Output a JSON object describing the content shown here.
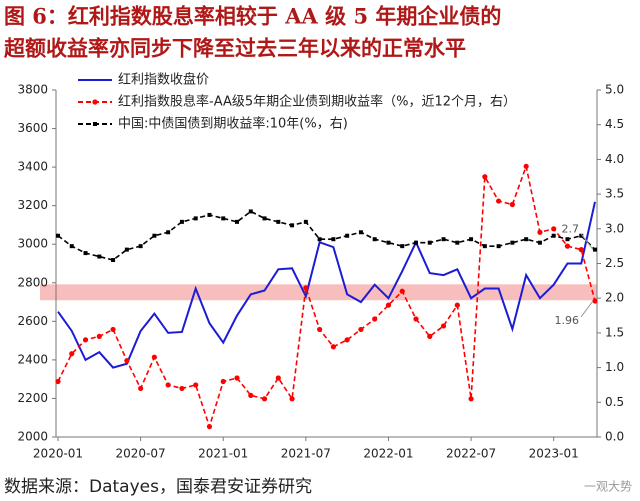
{
  "chart_data": {
    "type": "line",
    "title": [
      "图 6：红利指数股息率相较于 AA 级 5 年期企业债的",
      "超额收益率亦同步下降至过去三年以来的正常水平"
    ],
    "categories": [
      "2020-01",
      null,
      null,
      null,
      null,
      null,
      "2020-07",
      null,
      null,
      null,
      null,
      null,
      "2021-01",
      null,
      null,
      null,
      null,
      null,
      "2021-07",
      null,
      null,
      null,
      null,
      null,
      "2022-01",
      null,
      null,
      null,
      null,
      null,
      "2022-07",
      null,
      null,
      null,
      null,
      null,
      "2023-01",
      null,
      null,
      null
    ],
    "series": [
      {
        "name": "红利指数收盘价",
        "color": "#1c1cd6",
        "axis": "y",
        "style": "solid",
        "values": [
          2650,
          2550,
          2400,
          2440,
          2360,
          2380,
          2550,
          2640,
          2540,
          2545,
          2770,
          2590,
          2490,
          2630,
          2740,
          2760,
          2870,
          2875,
          2730,
          3010,
          2985,
          2740,
          2700,
          2790,
          2720,
          2860,
          3010,
          2850,
          2840,
          2870,
          2720,
          2770,
          2770,
          2560,
          2840,
          2720,
          2790,
          2900,
          2900,
          3220
        ]
      },
      {
        "name": "红利指数股息率-AA级5年期企业债到期收益率（%，近12个月，右）",
        "color": "#ff0000",
        "axis": "y2",
        "style": "dashed-circle",
        "values": [
          0.8,
          1.2,
          1.4,
          1.45,
          1.55,
          1.1,
          0.7,
          1.15,
          0.75,
          0.7,
          0.75,
          0.15,
          0.8,
          0.85,
          0.6,
          0.55,
          0.85,
          0.55,
          2.15,
          1.55,
          1.3,
          1.4,
          1.55,
          1.7,
          1.9,
          2.1,
          1.7,
          1.45,
          1.6,
          1.9,
          0.55,
          3.75,
          3.4,
          3.35,
          3.9,
          2.95,
          3.0,
          2.75,
          2.7,
          1.96
        ]
      },
      {
        "name": "中国:中债国债到期收益率:10年(%，右)",
        "color": "#000000",
        "axis": "y2",
        "style": "dashed-square",
        "values": [
          2.9,
          2.75,
          2.65,
          2.6,
          2.55,
          2.7,
          2.75,
          2.9,
          2.95,
          3.1,
          3.15,
          3.2,
          3.15,
          3.1,
          3.25,
          3.15,
          3.1,
          3.05,
          3.1,
          2.85,
          2.85,
          2.9,
          2.95,
          2.85,
          2.8,
          2.75,
          2.8,
          2.8,
          2.85,
          2.8,
          2.85,
          2.75,
          2.75,
          2.8,
          2.85,
          2.8,
          2.9,
          2.85,
          2.9,
          2.7
        ]
      }
    ],
    "ylim": [
      2000,
      3800
    ],
    "yticks": [
      2000,
      2200,
      2400,
      2600,
      2800,
      3000,
      3200,
      3400,
      3600,
      3800
    ],
    "y2lim": [
      0,
      5
    ],
    "y2ticks": [
      {
        "value": 0,
        "label": "0.0"
      },
      0.5,
      {
        "value": 1,
        "label": "1.0"
      },
      1.5,
      {
        "value": 2,
        "label": "2.0"
      },
      2.5,
      {
        "value": 3,
        "label": "3.0"
      },
      3.5,
      {
        "value": 4,
        "label": "4.0"
      },
      4.5,
      {
        "value": 5,
        "label": "5.0"
      }
    ],
    "highlight_band": [
      1.97,
      2.2
    ],
    "highlight_color": "#f7b3b3",
    "annotations": [
      {
        "series": 2,
        "label": "2.7"
      },
      {
        "series": 1,
        "label": "1.96"
      }
    ],
    "legend": "upper-left",
    "source": "数据来源：Datayes，国泰君安证券研究",
    "watermark": "一观大势"
  }
}
